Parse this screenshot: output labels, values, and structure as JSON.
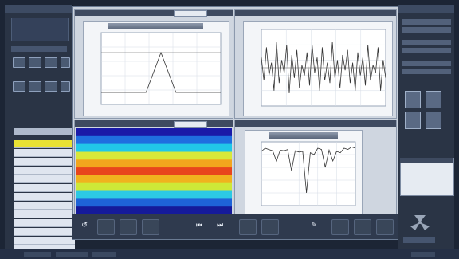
{
  "colors": {
    "background": "#1c2535",
    "sidebar_active": "#e9e233",
    "plot_line": "#333333",
    "heatmap_bands": [
      "#1a1aa8",
      "#1f6fe0",
      "#21c8e8",
      "#d8e83a",
      "#f2a51d",
      "#e8451c",
      "#f0b21e",
      "#cde838",
      "#2cc9e4",
      "#1e63d8",
      "#151a9a"
    ]
  },
  "icons": {
    "toolbar_left": [
      "reset-icon"
    ],
    "toolbar_mid": [
      "skip-back-icon",
      "skip-forward-icon"
    ],
    "toolbar_right": [
      "pen-icon"
    ]
  },
  "sidebar": {
    "selected_index": 0,
    "item_count": 13
  },
  "chart_data": [
    {
      "type": "line",
      "title": "",
      "description_hint": "triangle pulse",
      "x": [
        -1.0,
        -0.5,
        -0.25,
        0.0,
        0.25,
        0.5,
        1.0
      ],
      "y": [
        0,
        0,
        0,
        1,
        0,
        0,
        0
      ],
      "xlim": [
        -1.0,
        1.0
      ],
      "ylim": [
        -0.3,
        1.5
      ],
      "grid": true
    },
    {
      "type": "line",
      "title": "",
      "x_range": [
        0,
        100
      ],
      "y": [
        0.4,
        -0.5,
        0.8,
        -0.3,
        0.2,
        -0.9,
        1.0,
        -0.6,
        0.3,
        -0.2,
        0.9,
        -1.0,
        0.5,
        -0.4,
        0.7,
        -0.8,
        0.1,
        -0.3,
        0.6,
        -0.7,
        0.9,
        -0.2,
        0.4,
        -0.9,
        0.8,
        -0.5,
        0.2,
        -0.6,
        1.0,
        -0.4,
        0.3,
        -0.8,
        0.5,
        -0.1,
        0.7,
        -0.6,
        0.2,
        -0.9,
        0.6,
        -0.3,
        0.4,
        -0.7,
        0.9,
        -0.5,
        0.1,
        -0.2,
        0.8,
        -0.9,
        0.3,
        -0.4
      ],
      "ylim": [
        -1.5,
        1.5
      ],
      "grid": true
    },
    {
      "type": "heatmap",
      "title": "",
      "band_count": 11,
      "grid": false
    },
    {
      "type": "line",
      "title": "",
      "x": [
        0,
        4,
        8,
        12,
        16,
        20,
        24,
        28,
        32,
        36,
        40,
        44,
        48,
        52,
        56,
        60,
        64,
        68,
        72,
        76,
        80,
        84,
        88,
        92,
        96,
        100
      ],
      "y": [
        0.85,
        0.9,
        0.88,
        0.86,
        0.7,
        0.87,
        0.86,
        0.88,
        0.55,
        0.86,
        0.84,
        0.85,
        0.2,
        0.83,
        0.8,
        0.9,
        0.88,
        0.6,
        0.87,
        0.7,
        0.85,
        0.83,
        0.9,
        0.88,
        0.92,
        0.9
      ],
      "xlim": [
        0,
        100
      ],
      "ylim": [
        0,
        1
      ],
      "grid": true
    }
  ]
}
